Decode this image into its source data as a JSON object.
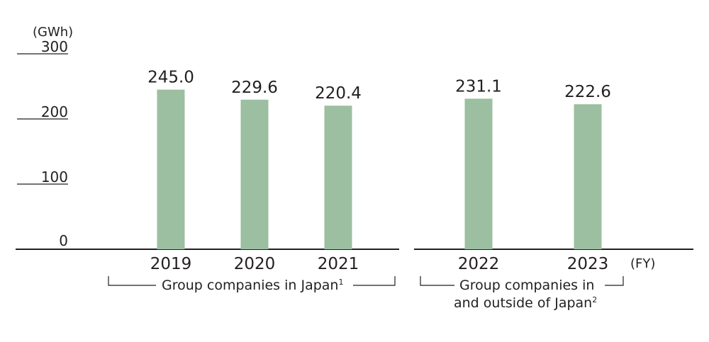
{
  "chart_data": {
    "type": "bar",
    "y_unit": "(GWh)",
    "x_unit": "(FY)",
    "ylim": [
      0,
      300
    ],
    "yticks": [
      "300",
      "200",
      "100",
      "0"
    ],
    "bar_color": "#9bbfa0",
    "categories": [
      "2019",
      "2020",
      "2021",
      "2022",
      "2023"
    ],
    "values": [
      245.0,
      229.6,
      220.4,
      231.1,
      222.6
    ],
    "value_labels": [
      "245.0",
      "229.6",
      "220.4",
      "231.1",
      "222.6"
    ],
    "groups": [
      {
        "label": "Group companies in Japan",
        "footnote": "1",
        "categories": [
          "2019",
          "2020",
          "2021"
        ]
      },
      {
        "label_line1": "Group companies in",
        "label_line2": "and outside of Japan",
        "footnote": "2",
        "categories": [
          "2022",
          "2023"
        ]
      }
    ]
  }
}
